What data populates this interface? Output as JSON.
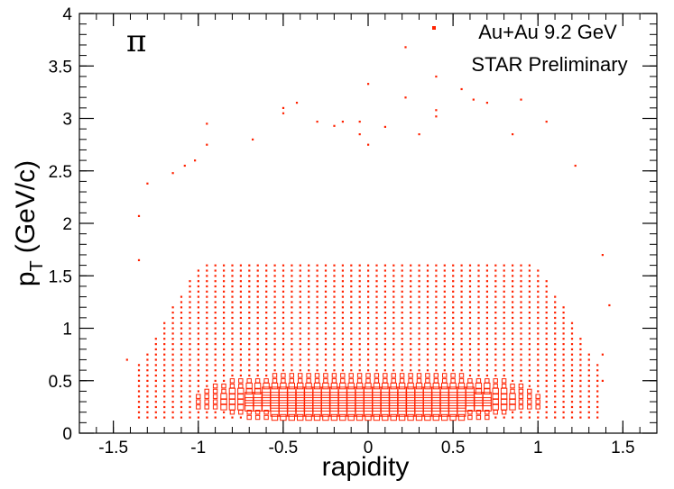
{
  "chart_data": {
    "type": "scatter",
    "title": "",
    "xlabel": "rapidity",
    "ylabel": "p_T (GeV/c)",
    "ylabel_main": "p",
    "ylabel_sub": "T",
    "ylabel_rest": "(GeV/c)",
    "xlim": [
      -1.7,
      1.7
    ],
    "ylim": [
      0,
      4
    ],
    "x_ticks": [
      {
        "value": -1.5,
        "label": "-1.5"
      },
      {
        "value": -1.0,
        "label": "-1"
      },
      {
        "value": -0.5,
        "label": "-0.5"
      },
      {
        "value": 0.0,
        "label": "0"
      },
      {
        "value": 0.5,
        "label": "0.5"
      },
      {
        "value": 1.0,
        "label": "1"
      },
      {
        "value": 1.5,
        "label": "1.5"
      }
    ],
    "y_ticks": [
      {
        "value": 0,
        "label": "0"
      },
      {
        "value": 0.5,
        "label": "0.5"
      },
      {
        "value": 1,
        "label": "1"
      },
      {
        "value": 1.5,
        "label": "1.5"
      },
      {
        "value": 2,
        "label": "2"
      },
      {
        "value": 2.5,
        "label": "2.5"
      },
      {
        "value": 3,
        "label": "3"
      },
      {
        "value": 3.5,
        "label": "3.5"
      },
      {
        "value": 4,
        "label": "4"
      }
    ],
    "particle_label": "π",
    "legend": {
      "placement": "top-right",
      "entries": [
        "Au+Au 9.2 GeV",
        "STAR Preliminary"
      ]
    },
    "marker": "box",
    "color": "#ff2200",
    "grid": false,
    "series": [
      {
        "name": "Au+Au 9.2 GeV",
        "bins": {
          "x_start": -1.35,
          "x_step": 0.05,
          "x_count": 55,
          "y_start": 0.15,
          "y_step": 0.05,
          "y_count": 30
        },
        "outliers": [
          [
            -1.42,
            0.7
          ],
          [
            -1.35,
            1.65
          ],
          [
            -1.35,
            2.07
          ],
          [
            -1.3,
            2.38
          ],
          [
            -1.15,
            2.48
          ],
          [
            -1.08,
            2.55
          ],
          [
            -1.02,
            2.6
          ],
          [
            -0.95,
            2.95
          ],
          [
            -0.95,
            2.75
          ],
          [
            -0.68,
            2.8
          ],
          [
            -0.5,
            3.1
          ],
          [
            -0.5,
            3.05
          ],
          [
            -0.42,
            3.15
          ],
          [
            -0.3,
            2.97
          ],
          [
            -0.2,
            2.93
          ],
          [
            -0.15,
            2.97
          ],
          [
            -0.05,
            2.97
          ],
          [
            -0.05,
            2.85
          ],
          [
            0.0,
            3.33
          ],
          [
            0.0,
            2.75
          ],
          [
            0.1,
            2.92
          ],
          [
            0.22,
            3.68
          ],
          [
            0.22,
            3.2
          ],
          [
            0.3,
            2.85
          ],
          [
            0.4,
            3.4
          ],
          [
            0.4,
            3.08
          ],
          [
            0.4,
            3.02
          ],
          [
            0.55,
            3.28
          ],
          [
            0.62,
            3.18
          ],
          [
            0.7,
            3.15
          ],
          [
            0.85,
            2.85
          ],
          [
            0.9,
            3.18
          ],
          [
            1.05,
            2.97
          ],
          [
            1.22,
            2.55
          ],
          [
            1.38,
            1.7
          ],
          [
            1.42,
            1.22
          ],
          [
            1.38,
            0.5
          ],
          [
            1.38,
            0.75
          ]
        ]
      }
    ]
  }
}
